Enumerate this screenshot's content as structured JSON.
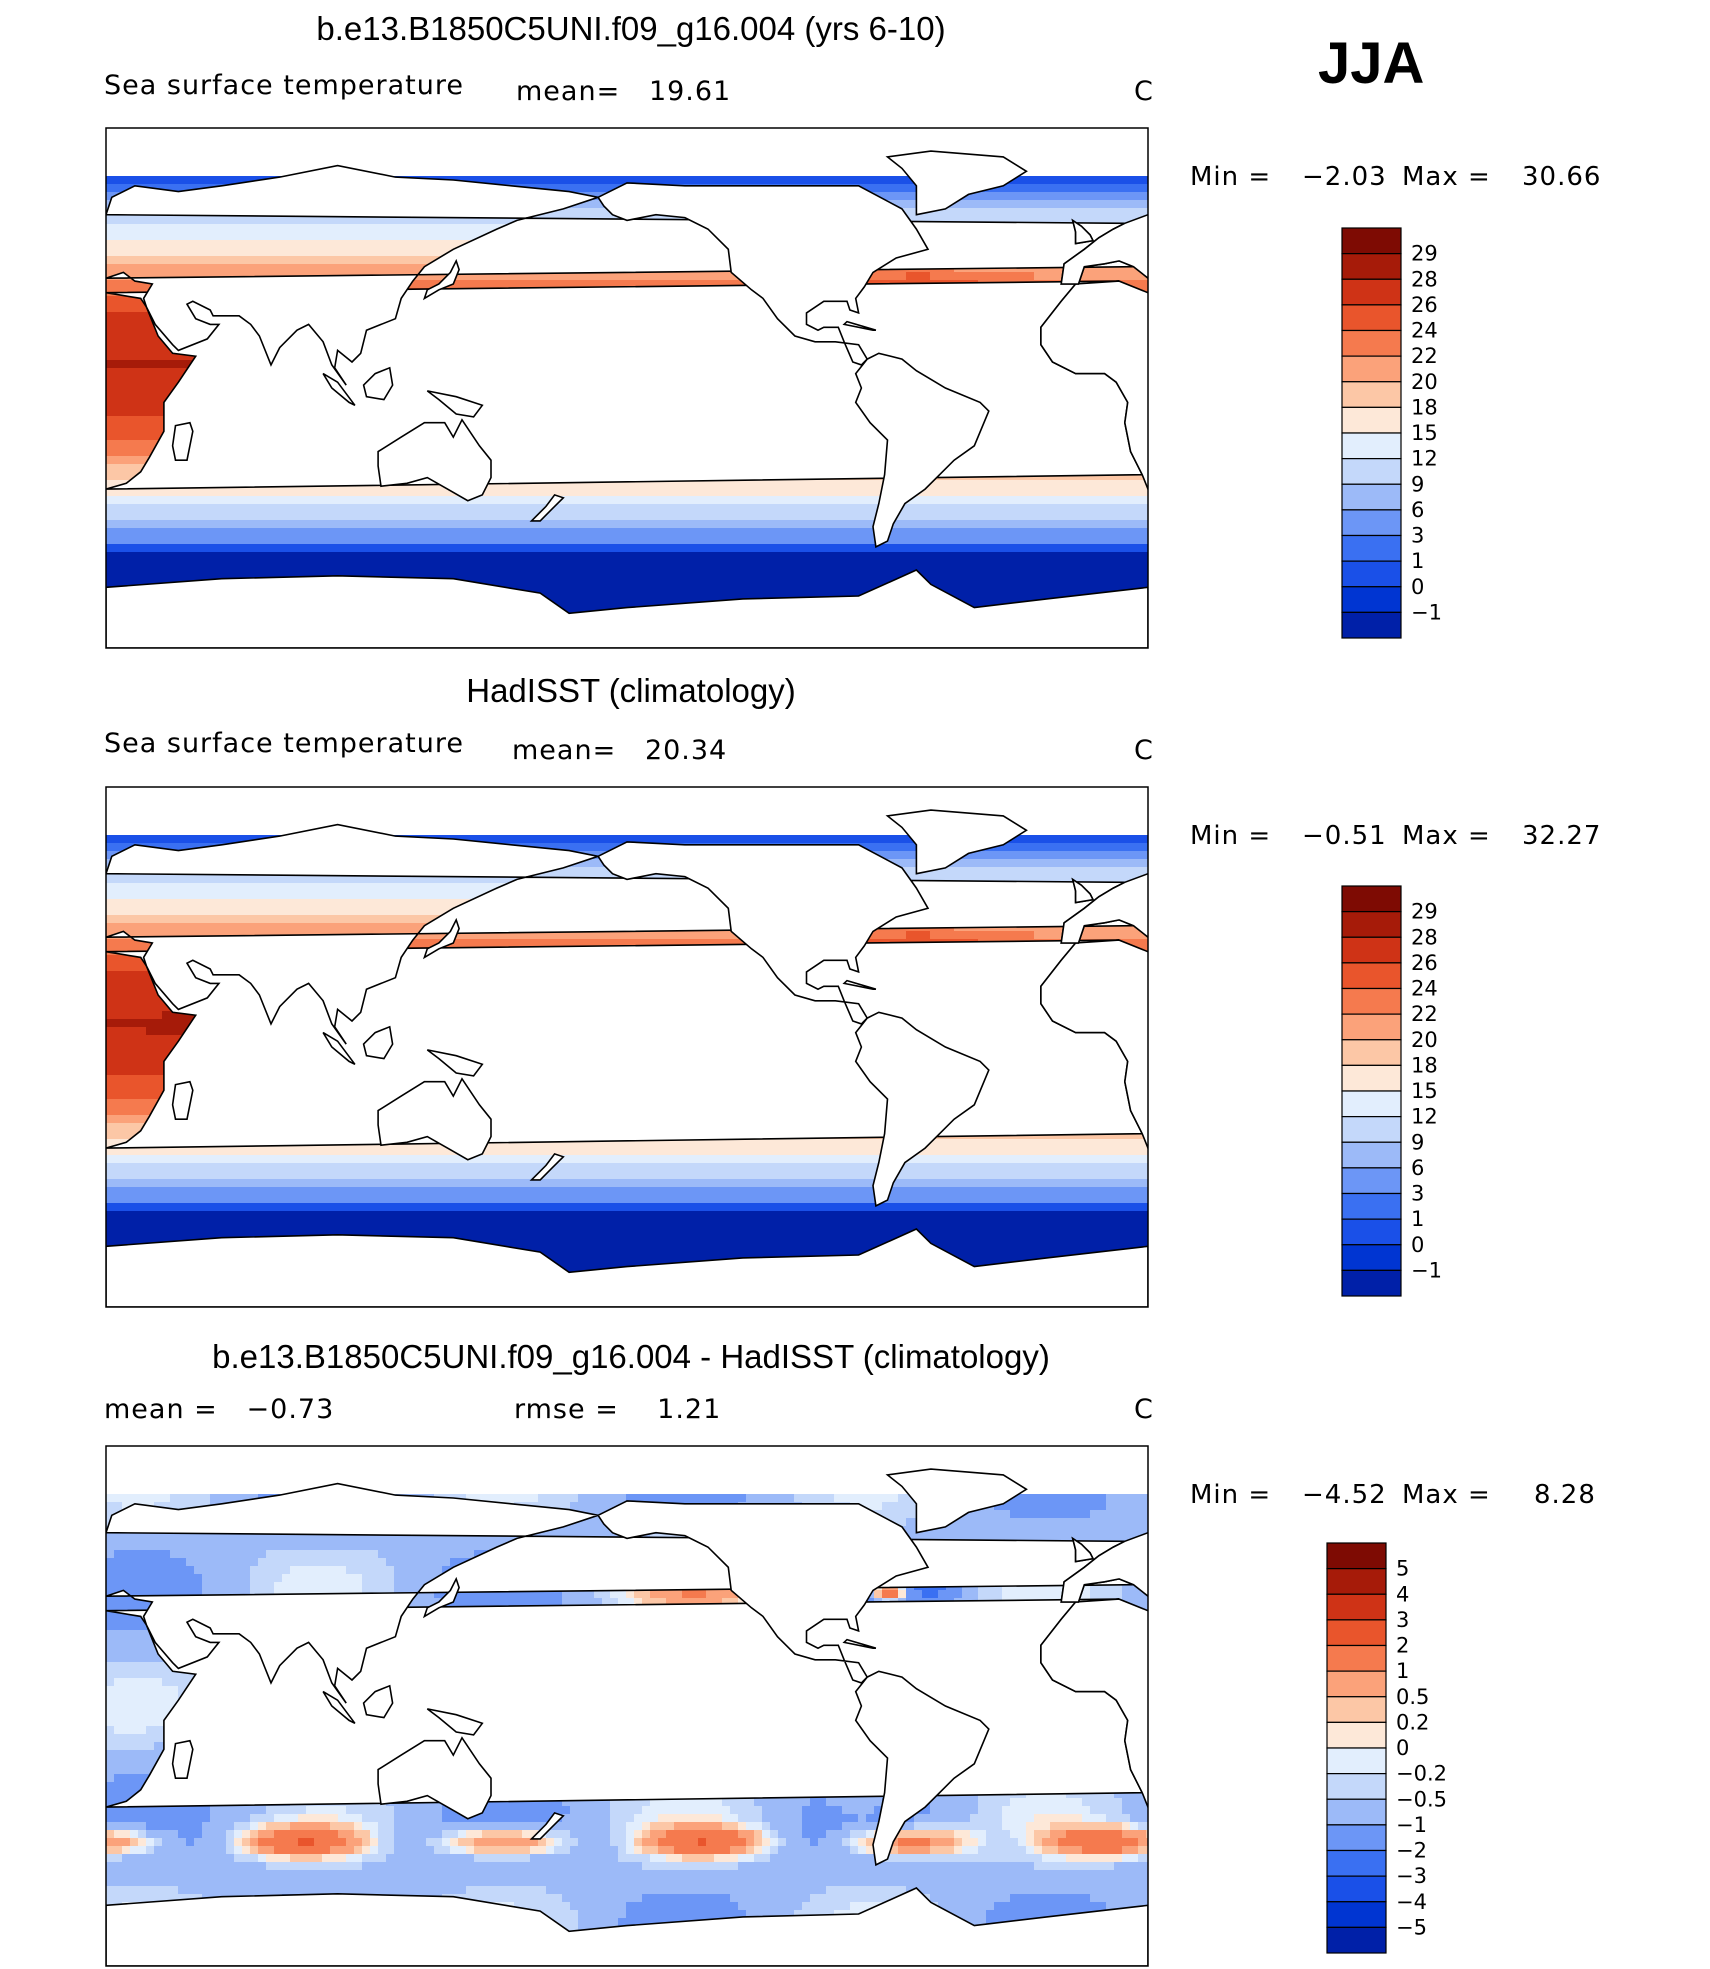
{
  "season": "JJA",
  "colors": {
    "sst": [
      "#00007f",
      "#0020a8",
      "#0035d2",
      "#1a50e8",
      "#3a70f2",
      "#6c96f6",
      "#9cbaf8",
      "#c4d8fa",
      "#e2eefd",
      "#fde8d8",
      "#fcc7a6",
      "#fba27a",
      "#f57a4e",
      "#e9552c",
      "#cf3316",
      "#a61b09",
      "#7e0b03"
    ],
    "diff": [
      "#00007f",
      "#0020a8",
      "#0035d2",
      "#1a50e8",
      "#3a70f2",
      "#6c96f6",
      "#9cbaf8",
      "#c4d8fa",
      "#e2eefd",
      "#fde8d8",
      "#fcc7a6",
      "#fba27a",
      "#f57a4e",
      "#e9552c",
      "#cf3316",
      "#a61b09",
      "#7e0b03"
    ],
    "land": "#ffffff",
    "coast": "#000000"
  },
  "panels": [
    {
      "title": "b.e13.B1850C5UNI.f09_g16.004 (yrs 6-10)",
      "left_text": "Sea surface temperature",
      "mean_text": "mean=   19.61",
      "units": "C",
      "min_label": "Min =",
      "min_value": "−2.03",
      "max_label": "Max =",
      "max_value": "30.66",
      "colorbar_labels": [
        "29",
        "28",
        "26",
        "24",
        "22",
        "20",
        "18",
        "15",
        "12",
        "9",
        "6",
        "3",
        "1",
        "0",
        "−1"
      ],
      "field": "model"
    },
    {
      "title": "HadISST (climatology)",
      "left_text": "Sea surface temperature",
      "mean_text": "mean=   20.34",
      "units": "C",
      "min_label": "Min =",
      "min_value": "−0.51",
      "max_label": "Max =",
      "max_value": "32.27",
      "colorbar_labels": [
        "29",
        "28",
        "26",
        "24",
        "22",
        "20",
        "18",
        "15",
        "12",
        "9",
        "6",
        "3",
        "1",
        "0",
        "−1"
      ],
      "field": "obs"
    },
    {
      "title": "b.e13.B1850C5UNI.f09_g16.004 - HadISST (climatology)",
      "left_text": "mean =   −0.73",
      "mean_text": "rmse =    1.21",
      "units": "C",
      "min_label": "Min =",
      "min_value": "−4.52",
      "max_label": "Max =",
      "max_value": "8.28",
      "colorbar_labels": [
        "5",
        "4",
        "3",
        "2",
        "1",
        "0.5",
        "0.2",
        "0",
        "−0.2",
        "−0.5",
        "−1",
        "−2",
        "−3",
        "−4",
        "−5"
      ],
      "field": "diff"
    }
  ],
  "chart_data": [
    {
      "type": "heatmap",
      "title": "b.e13.B1850C5UNI.f09_g16.004 (yrs 6-10)",
      "variable": "Sea surface temperature",
      "units": "C",
      "mean": 19.61,
      "min": -2.03,
      "max": 30.66,
      "levels": [
        -1,
        0,
        1,
        3,
        6,
        9,
        12,
        15,
        18,
        20,
        22,
        24,
        26,
        28,
        29
      ],
      "grid": false
    },
    {
      "type": "heatmap",
      "title": "HadISST (climatology)",
      "variable": "Sea surface temperature",
      "units": "C",
      "mean": 20.34,
      "min": -0.51,
      "max": 32.27,
      "levels": [
        -1,
        0,
        1,
        3,
        6,
        9,
        12,
        15,
        18,
        20,
        22,
        24,
        26,
        28,
        29
      ],
      "grid": false
    },
    {
      "type": "heatmap",
      "title": "b.e13.B1850C5UNI.f09_g16.004 - HadISST (climatology)",
      "units": "C",
      "mean": -0.73,
      "rmse": 1.21,
      "min": -4.52,
      "max": 8.28,
      "levels": [
        -5,
        -4,
        -3,
        -2,
        -1,
        -0.5,
        -0.2,
        0,
        0.2,
        0.5,
        1,
        2,
        3,
        4,
        5
      ],
      "grid": false
    }
  ]
}
